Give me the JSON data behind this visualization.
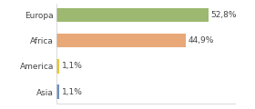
{
  "categories": [
    "Asia",
    "America",
    "Africa",
    "Europa"
  ],
  "values": [
    1.1,
    1.1,
    44.9,
    52.8
  ],
  "bar_colors": [
    "#7090c0",
    "#e8c840",
    "#e8a878",
    "#9db870"
  ],
  "labels": [
    "1,1%",
    "1,1%",
    "44,9%",
    "52,8%"
  ],
  "xlim": [
    0,
    62
  ],
  "background_color": "#ffffff",
  "bar_height": 0.55,
  "label_fontsize": 6.5,
  "tick_fontsize": 6.5,
  "label_color": "#444444",
  "tick_color": "#444444"
}
